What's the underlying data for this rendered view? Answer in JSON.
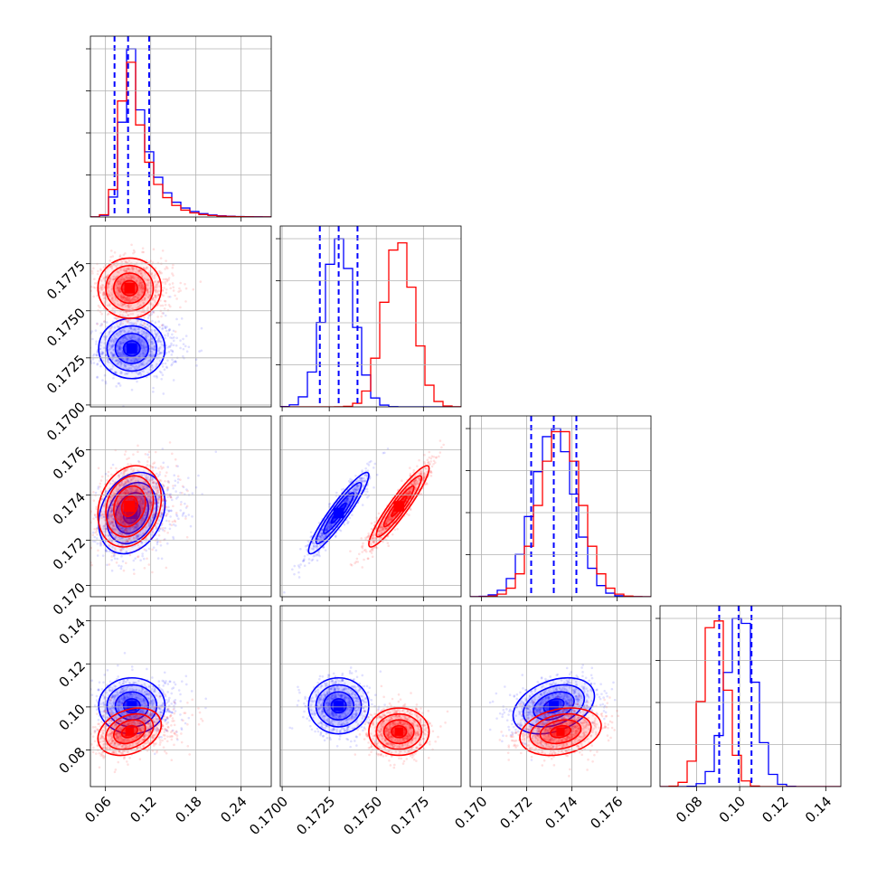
{
  "chart_data": {
    "type": "corner",
    "parameters": [
      {
        "range": [
          0.04,
          0.28
        ],
        "ticks": [
          0.06,
          0.12,
          0.18,
          0.24
        ],
        "tick_labels": [
          "0.06",
          "0.12",
          "0.18",
          "0.24"
        ]
      },
      {
        "range": [
          0.1699,
          0.1795
        ],
        "ticks": [
          0.17,
          0.1725,
          0.175,
          0.1775
        ],
        "tick_labels": [
          "0.1700",
          "0.1725",
          "0.1750",
          "0.1775"
        ]
      },
      {
        "range": [
          0.1695,
          0.1775
        ],
        "ticks": [
          0.17,
          0.172,
          0.174,
          0.176
        ],
        "tick_labels": [
          "0.170",
          "0.172",
          "0.174",
          "0.176"
        ]
      },
      {
        "range": [
          0.063,
          0.147
        ],
        "ticks": [
          0.08,
          0.1,
          0.12,
          0.14
        ],
        "tick_labels": [
          "0.08",
          "0.10",
          "0.12",
          "0.14"
        ]
      }
    ],
    "series": [
      {
        "color": "#0000ff",
        "means": [
          0.095,
          0.173,
          0.1732,
          0.1005
        ],
        "sigmas": [
          0.022,
          0.0008,
          0.0009,
          0.0065
        ],
        "correlations": {
          "1-0": 0.0,
          "2-0": 0.25,
          "3-0": 0.0,
          "2-1": 0.93,
          "3-1": 0.0,
          "3-2": 0.35
        },
        "quantiles": [
          [
            0.072,
            0.09,
            0.118
          ],
          [
            0.172,
            0.173,
            0.174
          ],
          [
            0.1722,
            0.1732,
            0.1742
          ],
          [
            0.0905,
            0.0995,
            0.1055
          ]
        ]
      },
      {
        "color": "#ff0000",
        "means": [
          0.092,
          0.1762,
          0.1735,
          0.0885
        ],
        "sigmas": [
          0.021,
          0.0008,
          0.0009,
          0.0055
        ],
        "correlations": {
          "1-0": 0.0,
          "2-0": 0.2,
          "3-0": 0.3,
          "2-1": 0.93,
          "3-1": 0.0,
          "3-2": 0.25
        }
      }
    ],
    "grid": true,
    "legend": "none"
  }
}
